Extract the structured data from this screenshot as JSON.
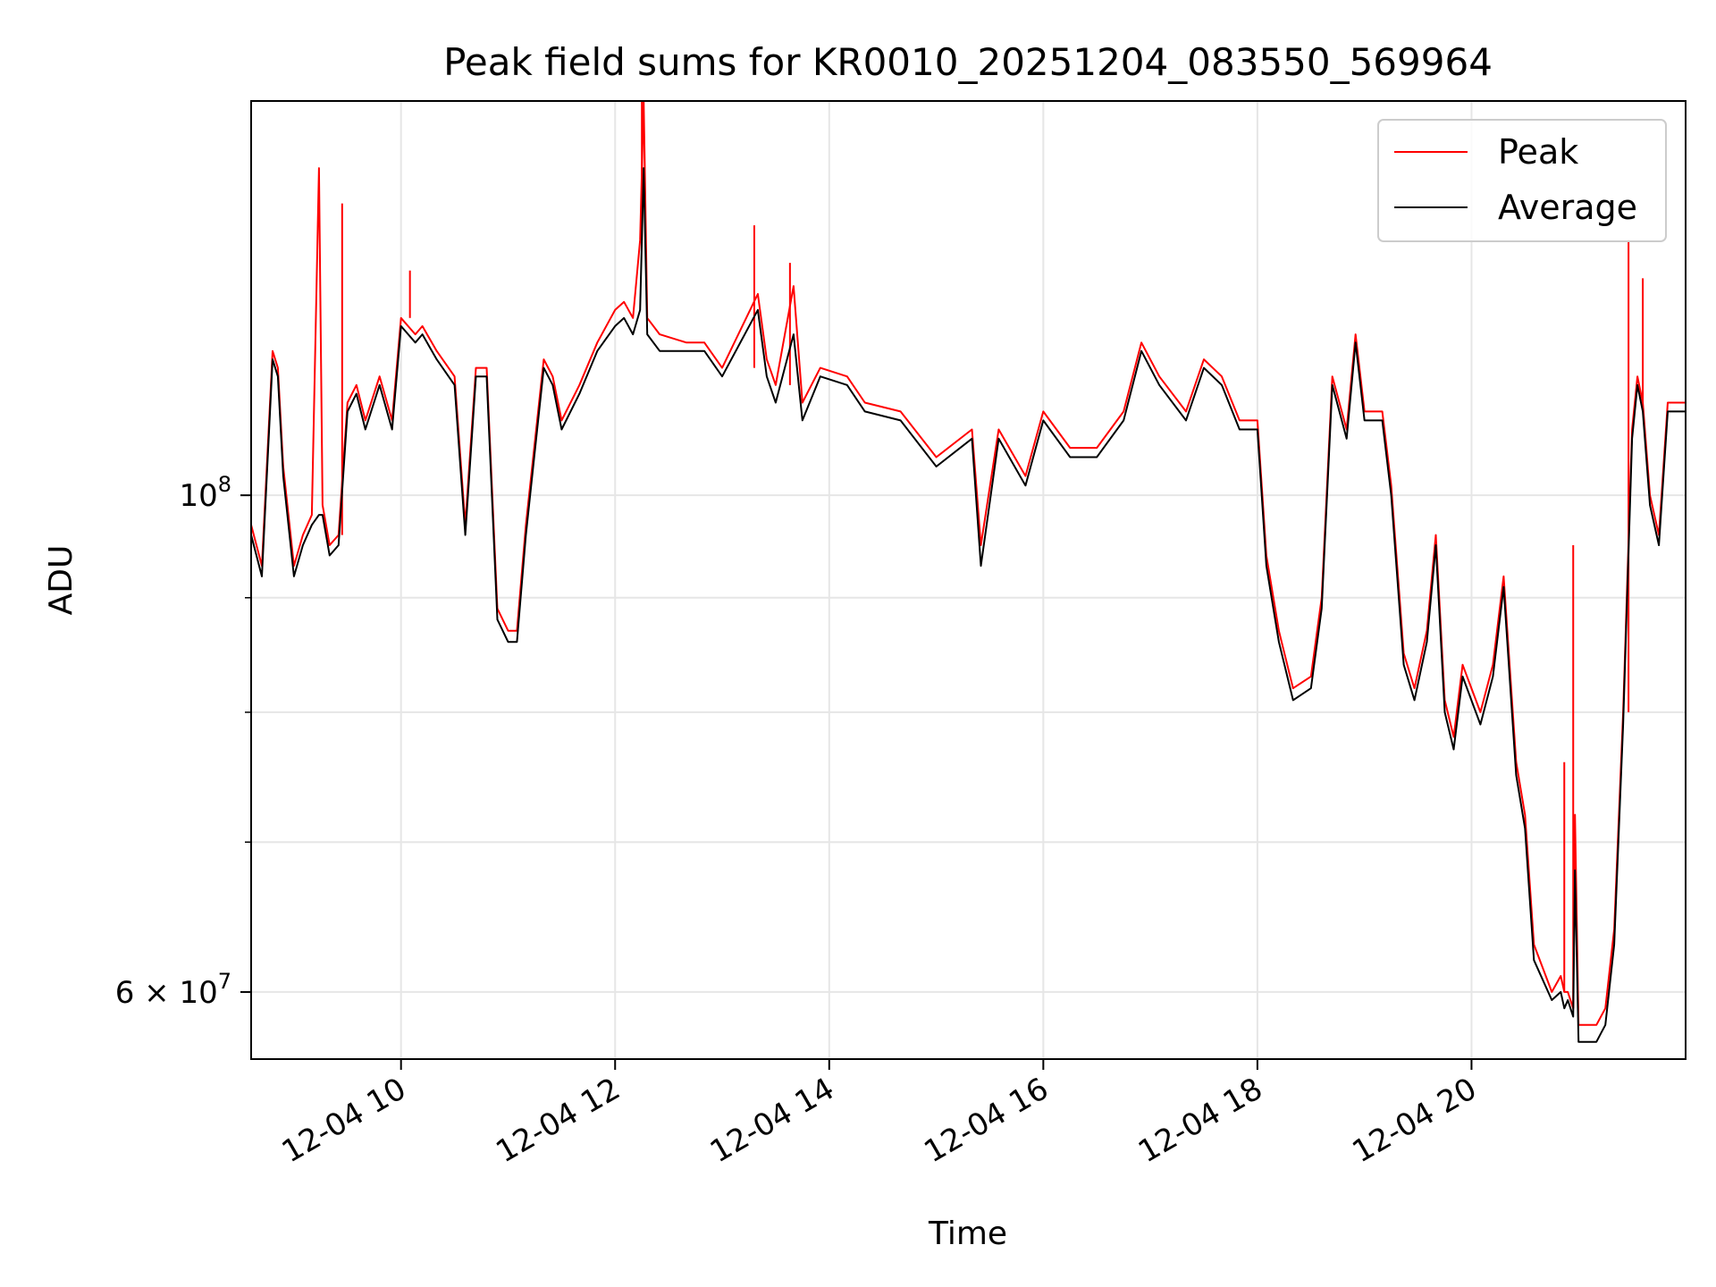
{
  "chart_data": {
    "type": "line",
    "title": "Peak field sums for KR0010_20251204_083550_569964",
    "xlabel": "Time",
    "ylabel": "ADU",
    "yscale": "log",
    "xlim": [
      "2025-12-04 08:36",
      "2025-12-04 22:00"
    ],
    "ylim": [
      56000000,
      150000000
    ],
    "grid": true,
    "legend_position": "top-right",
    "x_ticks": [
      {
        "value": "2025-12-04 10:00",
        "label": "12-04 10"
      },
      {
        "value": "2025-12-04 12:00",
        "label": "12-04 12"
      },
      {
        "value": "2025-12-04 14:00",
        "label": "12-04 14"
      },
      {
        "value": "2025-12-04 16:00",
        "label": "12-04 16"
      },
      {
        "value": "2025-12-04 18:00",
        "label": "12-04 18"
      },
      {
        "value": "2025-12-04 20:00",
        "label": "12-04 20"
      }
    ],
    "y_ticks": [
      {
        "value": 100000000,
        "label_base": "10",
        "label_exp": "8",
        "label_mantissa": ""
      },
      {
        "value": 60000000,
        "label_base": "10",
        "label_exp": "7",
        "label_mantissa": "6 × "
      }
    ],
    "y_minor_ticks": [
      70000000,
      80000000,
      90000000
    ],
    "series": [
      {
        "name": "Peak",
        "color": "#ff0000",
        "x": [
          "2025-12-04 08:36",
          "2025-12-04 08:42",
          "2025-12-04 08:48",
          "2025-12-04 08:51",
          "2025-12-04 08:54",
          "2025-12-04 09:00",
          "2025-12-04 09:05",
          "2025-12-04 09:10",
          "2025-12-04 09:14",
          "2025-12-04 09:16",
          "2025-12-04 09:20",
          "2025-12-04 09:25",
          "2025-12-04 09:30",
          "2025-12-04 09:35",
          "2025-12-04 09:40",
          "2025-12-04 09:48",
          "2025-12-04 09:55",
          "2025-12-04 10:00",
          "2025-12-04 10:08",
          "2025-12-04 10:12",
          "2025-12-04 10:20",
          "2025-12-04 10:30",
          "2025-12-04 10:36",
          "2025-12-04 10:42",
          "2025-12-04 10:48",
          "2025-12-04 10:54",
          "2025-12-04 11:00",
          "2025-12-04 11:05",
          "2025-12-04 11:10",
          "2025-12-04 11:20",
          "2025-12-04 11:25",
          "2025-12-04 11:30",
          "2025-12-04 11:40",
          "2025-12-04 11:50",
          "2025-12-04 12:00",
          "2025-12-04 12:05",
          "2025-12-04 12:10",
          "2025-12-04 12:14",
          "2025-12-04 12:16",
          "2025-12-04 12:18",
          "2025-12-04 12:25",
          "2025-12-04 12:40",
          "2025-12-04 12:50",
          "2025-12-04 13:00",
          "2025-12-04 13:20",
          "2025-12-04 13:25",
          "2025-12-04 13:30",
          "2025-12-04 13:40",
          "2025-12-04 13:45",
          "2025-12-04 13:55",
          "2025-12-04 14:10",
          "2025-12-04 14:20",
          "2025-12-04 14:40",
          "2025-12-04 15:00",
          "2025-12-04 15:20",
          "2025-12-04 15:25",
          "2025-12-04 15:35",
          "2025-12-04 15:50",
          "2025-12-04 16:00",
          "2025-12-04 16:15",
          "2025-12-04 16:30",
          "2025-12-04 16:45",
          "2025-12-04 16:55",
          "2025-12-04 17:05",
          "2025-12-04 17:20",
          "2025-12-04 17:30",
          "2025-12-04 17:40",
          "2025-12-04 17:50",
          "2025-12-04 18:00",
          "2025-12-04 18:05",
          "2025-12-04 18:12",
          "2025-12-04 18:20",
          "2025-12-04 18:30",
          "2025-12-04 18:36",
          "2025-12-04 18:42",
          "2025-12-04 18:50",
          "2025-12-04 18:55",
          "2025-12-04 19:00",
          "2025-12-04 19:10",
          "2025-12-04 19:15",
          "2025-12-04 19:22",
          "2025-12-04 19:28",
          "2025-12-04 19:35",
          "2025-12-04 19:40",
          "2025-12-04 19:45",
          "2025-12-04 19:50",
          "2025-12-04 19:55",
          "2025-12-04 20:05",
          "2025-12-04 20:12",
          "2025-12-04 20:18",
          "2025-12-04 20:25",
          "2025-12-04 20:30",
          "2025-12-04 20:35",
          "2025-12-04 20:45",
          "2025-12-04 20:50",
          "2025-12-04 20:52",
          "2025-12-04 20:54",
          "2025-12-04 20:57",
          "2025-12-04 20:58",
          "2025-12-04 21:00",
          "2025-12-04 21:05",
          "2025-12-04 21:10",
          "2025-12-04 21:15",
          "2025-12-04 21:20",
          "2025-12-04 21:25",
          "2025-12-04 21:30",
          "2025-12-04 21:33",
          "2025-12-04 21:36",
          "2025-12-04 21:40",
          "2025-12-04 21:45",
          "2025-12-04 21:50",
          "2025-12-04 21:55",
          "2025-12-04 22:00"
        ],
        "values": [
          97000000,
          93000000,
          116000000,
          114000000,
          103000000,
          93000000,
          96000000,
          98000000,
          140000000,
          99000000,
          95000000,
          96000000,
          110000000,
          112000000,
          108000000,
          113000000,
          108000000,
          120000000,
          118000000,
          119000000,
          116000000,
          113000000,
          97000000,
          114000000,
          114000000,
          89000000,
          87000000,
          87000000,
          97000000,
          115000000,
          113000000,
          108000000,
          112000000,
          117000000,
          121000000,
          122000000,
          120000000,
          130000000,
          150000000,
          120000000,
          118000000,
          117000000,
          117000000,
          114000000,
          123000000,
          115000000,
          112000000,
          124000000,
          110000000,
          114000000,
          113000000,
          110000000,
          109000000,
          104000000,
          107000000,
          95000000,
          107000000,
          102000000,
          109000000,
          105000000,
          105000000,
          109000000,
          117000000,
          113000000,
          109000000,
          115000000,
          113000000,
          108000000,
          108000000,
          94000000,
          87000000,
          82000000,
          83000000,
          90000000,
          113000000,
          107000000,
          118000000,
          109000000,
          109000000,
          101000000,
          85000000,
          82000000,
          87000000,
          96000000,
          81000000,
          78000000,
          84000000,
          80000000,
          84000000,
          92000000,
          76000000,
          72000000,
          63000000,
          60000000,
          61000000,
          60000000,
          60000000,
          59000000,
          72000000,
          58000000,
          58000000,
          58000000,
          59000000,
          64000000,
          80000000,
          107000000,
          113000000,
          110000000,
          100000000,
          96000000,
          110000000,
          110000000,
          110000000
        ],
        "spikes": [
          {
            "x": "2025-12-04 09:15",
            "value": 140000000
          },
          {
            "x": "2025-12-04 09:27",
            "value": 135000000
          },
          {
            "x": "2025-12-04 10:05",
            "value": 126000000
          },
          {
            "x": "2025-12-04 12:15",
            "value": 150000000
          },
          {
            "x": "2025-12-04 13:18",
            "value": 132000000
          },
          {
            "x": "2025-12-04 13:38",
            "value": 127000000
          },
          {
            "x": "2025-12-04 20:52",
            "value": 76000000
          },
          {
            "x": "2025-12-04 20:57",
            "value": 95000000
          },
          {
            "x": "2025-12-04 21:28",
            "value": 130000000
          },
          {
            "x": "2025-12-04 21:36",
            "value": 125000000
          }
        ]
      },
      {
        "name": "Average",
        "color": "#000000",
        "x": [
          "2025-12-04 08:36",
          "2025-12-04 08:42",
          "2025-12-04 08:48",
          "2025-12-04 08:51",
          "2025-12-04 08:54",
          "2025-12-04 09:00",
          "2025-12-04 09:05",
          "2025-12-04 09:10",
          "2025-12-04 09:14",
          "2025-12-04 09:16",
          "2025-12-04 09:20",
          "2025-12-04 09:25",
          "2025-12-04 09:30",
          "2025-12-04 09:35",
          "2025-12-04 09:40",
          "2025-12-04 09:48",
          "2025-12-04 09:55",
          "2025-12-04 10:00",
          "2025-12-04 10:08",
          "2025-12-04 10:12",
          "2025-12-04 10:20",
          "2025-12-04 10:30",
          "2025-12-04 10:36",
          "2025-12-04 10:42",
          "2025-12-04 10:48",
          "2025-12-04 10:54",
          "2025-12-04 11:00",
          "2025-12-04 11:05",
          "2025-12-04 11:10",
          "2025-12-04 11:20",
          "2025-12-04 11:25",
          "2025-12-04 11:30",
          "2025-12-04 11:40",
          "2025-12-04 11:50",
          "2025-12-04 12:00",
          "2025-12-04 12:05",
          "2025-12-04 12:10",
          "2025-12-04 12:14",
          "2025-12-04 12:16",
          "2025-12-04 12:18",
          "2025-12-04 12:25",
          "2025-12-04 12:40",
          "2025-12-04 12:50",
          "2025-12-04 13:00",
          "2025-12-04 13:20",
          "2025-12-04 13:25",
          "2025-12-04 13:30",
          "2025-12-04 13:40",
          "2025-12-04 13:45",
          "2025-12-04 13:55",
          "2025-12-04 14:10",
          "2025-12-04 14:20",
          "2025-12-04 14:40",
          "2025-12-04 15:00",
          "2025-12-04 15:20",
          "2025-12-04 15:25",
          "2025-12-04 15:35",
          "2025-12-04 15:50",
          "2025-12-04 16:00",
          "2025-12-04 16:15",
          "2025-12-04 16:30",
          "2025-12-04 16:45",
          "2025-12-04 16:55",
          "2025-12-04 17:05",
          "2025-12-04 17:20",
          "2025-12-04 17:30",
          "2025-12-04 17:40",
          "2025-12-04 17:50",
          "2025-12-04 18:00",
          "2025-12-04 18:05",
          "2025-12-04 18:12",
          "2025-12-04 18:20",
          "2025-12-04 18:30",
          "2025-12-04 18:36",
          "2025-12-04 18:42",
          "2025-12-04 18:50",
          "2025-12-04 18:55",
          "2025-12-04 19:00",
          "2025-12-04 19:10",
          "2025-12-04 19:15",
          "2025-12-04 19:22",
          "2025-12-04 19:28",
          "2025-12-04 19:35",
          "2025-12-04 19:40",
          "2025-12-04 19:45",
          "2025-12-04 19:50",
          "2025-12-04 19:55",
          "2025-12-04 20:05",
          "2025-12-04 20:12",
          "2025-12-04 20:18",
          "2025-12-04 20:25",
          "2025-12-04 20:30",
          "2025-12-04 20:35",
          "2025-12-04 20:45",
          "2025-12-04 20:50",
          "2025-12-04 20:52",
          "2025-12-04 20:54",
          "2025-12-04 20:57",
          "2025-12-04 20:58",
          "2025-12-04 21:00",
          "2025-12-04 21:05",
          "2025-12-04 21:10",
          "2025-12-04 21:15",
          "2025-12-04 21:20",
          "2025-12-04 21:25",
          "2025-12-04 21:30",
          "2025-12-04 21:33",
          "2025-12-04 21:36",
          "2025-12-04 21:40",
          "2025-12-04 21:45",
          "2025-12-04 21:50",
          "2025-12-04 21:55",
          "2025-12-04 22:00"
        ],
        "values": [
          96000000,
          92000000,
          115000000,
          113000000,
          102000000,
          92000000,
          95000000,
          97000000,
          98000000,
          98000000,
          94000000,
          95000000,
          109000000,
          111000000,
          107000000,
          112000000,
          107000000,
          119000000,
          117000000,
          118000000,
          115000000,
          112000000,
          96000000,
          113000000,
          113000000,
          88000000,
          86000000,
          86000000,
          96000000,
          114000000,
          112000000,
          107000000,
          111000000,
          116000000,
          119000000,
          120000000,
          118000000,
          121000000,
          140000000,
          118000000,
          116000000,
          116000000,
          116000000,
          113000000,
          121000000,
          113000000,
          110000000,
          118000000,
          108000000,
          113000000,
          112000000,
          109000000,
          108000000,
          103000000,
          106000000,
          93000000,
          106000000,
          101000000,
          108000000,
          104000000,
          104000000,
          108000000,
          116000000,
          112000000,
          108000000,
          114000000,
          112000000,
          107000000,
          107000000,
          93000000,
          86000000,
          81000000,
          82000000,
          89000000,
          112000000,
          106000000,
          117000000,
          108000000,
          108000000,
          100000000,
          84000000,
          81000000,
          86000000,
          95000000,
          80000000,
          77000000,
          83000000,
          79000000,
          83000000,
          91000000,
          75000000,
          71000000,
          62000000,
          59500000,
          60000000,
          59000000,
          59500000,
          58500000,
          68000000,
          57000000,
          57000000,
          57000000,
          58000000,
          63000000,
          79000000,
          106000000,
          112000000,
          109000000,
          99000000,
          95000000,
          109000000,
          109000000,
          109000000
        ]
      }
    ]
  }
}
